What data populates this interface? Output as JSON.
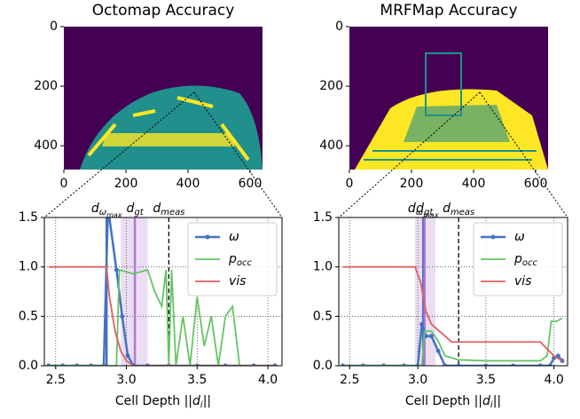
{
  "images": [
    {
      "title": "Octomap Accuracy",
      "xlim": [
        0,
        640
      ],
      "ylim": [
        480,
        0
      ],
      "xticks": [
        0,
        200,
        400,
        600
      ],
      "yticks": [
        0,
        200,
        400
      ]
    },
    {
      "title": "MRFMap Accuracy",
      "xlim": [
        0,
        640
      ],
      "ylim": [
        480,
        0
      ],
      "xticks": [
        0,
        200,
        400,
        600
      ],
      "yticks": [
        0,
        200,
        400
      ]
    }
  ],
  "chart_data": [
    {
      "type": "line",
      "xlabel": {
        "prefix": "Cell Depth ||",
        "var": "d",
        "sub": "i",
        "suffix": "||"
      },
      "xlim": [
        2.42,
        4.1
      ],
      "ylim": [
        0,
        1.5
      ],
      "xticks": [
        2.5,
        {
          "value": 3,
          "label": "3.0"
        },
        3.5,
        {
          "value": 4,
          "label": "4.0"
        }
      ],
      "yticks": [
        {
          "value": 0,
          "label": "0.0"
        },
        0.5,
        {
          "value": 1,
          "label": "1.0"
        },
        1.5
      ],
      "grid": true,
      "legend": "upper right",
      "series": [
        {
          "name": "ω",
          "color": "#4472c4",
          "marker": true,
          "x": [
            2.45,
            2.55,
            2.65,
            2.75,
            2.84,
            2.87,
            2.93,
            2.97,
            3.01,
            3.05,
            3.15,
            3.3,
            3.5,
            3.7,
            3.9,
            4.05
          ],
          "values": [
            0,
            0,
            0,
            0,
            0,
            1.6,
            0.97,
            0.5,
            0.1,
            0,
            0,
            0,
            0,
            0,
            0,
            0
          ]
        },
        {
          "name": "p",
          "name_sub": "occ",
          "color": "#66c466",
          "marker": false,
          "x": [
            2.45,
            2.6,
            2.75,
            2.9,
            2.93,
            2.95,
            3.0,
            3.05,
            3.1,
            3.15,
            3.2,
            3.25,
            3.28,
            3.3,
            3.32,
            3.35,
            3.4,
            3.45,
            3.5,
            3.55,
            3.6,
            3.65,
            3.7,
            3.75,
            3.8,
            3.9,
            4.05
          ],
          "values": [
            0,
            0,
            0,
            0,
            0,
            0.97,
            0.95,
            0.93,
            0.95,
            0.97,
            0.75,
            0.6,
            0.97,
            0,
            0.97,
            0,
            0.5,
            0,
            0.7,
            0.2,
            0.5,
            0,
            0.5,
            0.6,
            0,
            0,
            0
          ]
        },
        {
          "name": "vis",
          "color": "#e06060",
          "marker": false,
          "x": [
            2.45,
            2.86,
            2.88,
            2.92,
            2.96,
            3.0,
            3.05,
            3.2,
            4.05
          ],
          "values": [
            1,
            1,
            0.7,
            0.35,
            0.15,
            0.05,
            0,
            0,
            0
          ]
        }
      ],
      "vlines": [
        {
          "x": 2.86,
          "label": "d",
          "sub": "ω",
          "subsub": "max",
          "color": "#4472c4",
          "style": "solid"
        },
        {
          "x": 3.06,
          "label": "d",
          "sub": "gt",
          "color": "#b07ad0",
          "style": "solid",
          "band": [
            2.96,
            3.15
          ]
        },
        {
          "x": 3.3,
          "label": "d",
          "sub": "meas",
          "color": "#000000",
          "style": "dashed"
        }
      ]
    },
    {
      "type": "line",
      "xlabel": {
        "prefix": "Cell Depth ||",
        "var": "d",
        "sub": "i",
        "suffix": "||"
      },
      "xlim": [
        2.42,
        4.1
      ],
      "ylim": [
        0,
        1.5
      ],
      "xticks": [
        2.5,
        {
          "value": 3,
          "label": "3.0"
        },
        3.5,
        {
          "value": 4,
          "label": "4.0"
        }
      ],
      "yticks": [
        {
          "value": 0,
          "label": "0.0"
        },
        0.5,
        {
          "value": 1,
          "label": "1.0"
        },
        1.5
      ],
      "grid": true,
      "legend": "upper right",
      "series": [
        {
          "name": "ω",
          "color": "#4472c4",
          "marker": true,
          "x": [
            2.45,
            2.6,
            2.75,
            2.9,
            3.0,
            3.03,
            3.06,
            3.1,
            3.15,
            3.2,
            3.3,
            3.5,
            3.7,
            3.9,
            3.97,
            4.0,
            4.03,
            4.06
          ],
          "values": [
            0,
            0,
            0,
            0,
            0,
            0.42,
            0.3,
            0.3,
            0.15,
            0,
            0,
            0,
            0,
            0,
            0,
            0.08,
            0.1,
            0.05
          ]
        },
        {
          "name": "p",
          "name_sub": "occ",
          "color": "#66c466",
          "marker": false,
          "x": [
            2.45,
            2.8,
            3.0,
            3.03,
            3.05,
            3.1,
            3.15,
            3.2,
            3.3,
            3.5,
            3.9,
            3.95,
            3.98,
            4.02,
            4.06
          ],
          "values": [
            0,
            0,
            0,
            0,
            0.35,
            0.35,
            0.25,
            0.1,
            0.06,
            0.05,
            0.05,
            0.1,
            0.45,
            0.45,
            0.48
          ]
        },
        {
          "name": "vis",
          "color": "#e06060",
          "marker": false,
          "x": [
            2.45,
            2.98,
            3.02,
            3.06,
            3.1,
            3.2,
            3.25,
            3.9,
            4.0,
            4.06
          ],
          "values": [
            1,
            1,
            0.85,
            0.55,
            0.42,
            0.3,
            0.24,
            0.24,
            0.1,
            0.05
          ]
        }
      ],
      "vlines": [
        {
          "x": 3.04,
          "label": "d",
          "sub": "ω",
          "subsub": "max",
          "color": "#4472c4",
          "style": "solid"
        },
        {
          "x": 3.05,
          "label": "d",
          "sub": "gt",
          "color": "#b07ad0",
          "style": "solid",
          "band": [
            2.98,
            3.13
          ]
        },
        {
          "x": 3.3,
          "label": "d",
          "sub": "meas",
          "color": "#000000",
          "style": "dashed"
        }
      ]
    }
  ]
}
